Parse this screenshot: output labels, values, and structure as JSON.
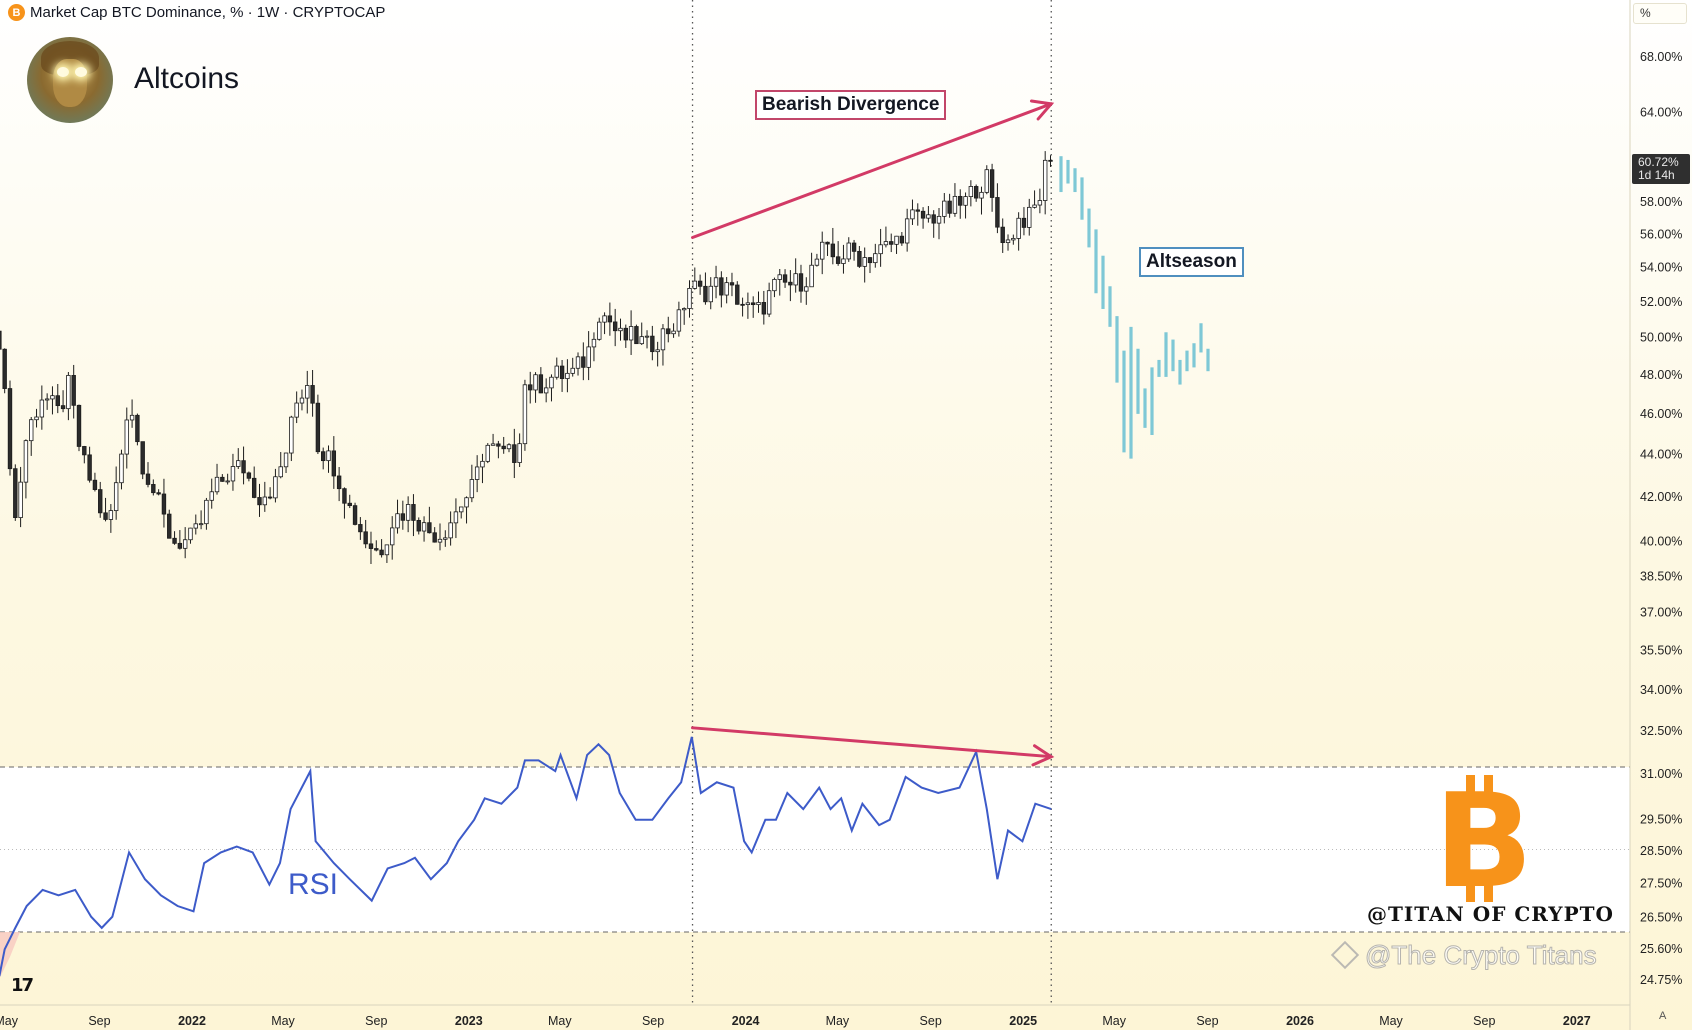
{
  "header": {
    "symbol_icon": "bitcoin-icon",
    "title": "Market Cap BTC Dominance, % · 1W · CRYPTOCAP",
    "channel_name": "Altcoins"
  },
  "scale_mode_label": "%",
  "last_price_tag": {
    "value": "60.72%",
    "countdown": "1d 14h"
  },
  "annotations": {
    "bearish_divergence": "Bearish Divergence",
    "altseason": "Altseason",
    "rsi_label": "RSI",
    "author_tag": "@TITAN OF CRYPTO",
    "watermark": "@The Crypto Titans",
    "axis_corner": "A"
  },
  "colors": {
    "up_body": "#ffffff",
    "down_body": "#2b2b2b",
    "candle_outline": "#1c1c1c",
    "projection": "#7ec8d6",
    "divergence_arrow": "#d23a66",
    "rsi_line": "#3d5bc9",
    "bitcoin_orange": "#f7931a",
    "price_tag_bg": "#2f2f2f"
  },
  "chart_data": [
    {
      "type": "candlestick",
      "interval": "1W",
      "y_scale": "log",
      "y_unit": "%",
      "grid": false,
      "y_ticks": [
        "68.00%",
        "64.00%",
        "58.00%",
        "56.00%",
        "54.00%",
        "52.00%",
        "50.00%",
        "48.00%",
        "46.00%",
        "44.00%",
        "42.00%",
        "40.00%",
        "38.50%",
        "37.00%",
        "35.50%",
        "34.00%",
        "32.50%",
        "31.00%",
        "29.50%",
        "28.50%",
        "27.50%",
        "26.50%",
        "25.60%",
        "24.75%"
      ],
      "y_tick_values": [
        68,
        64,
        58,
        56,
        54,
        52,
        50,
        48,
        46,
        44,
        42,
        40,
        38.5,
        37,
        35.5,
        34,
        32.5,
        31,
        29.5,
        28.5,
        27.5,
        26.5,
        25.6,
        24.75
      ],
      "x_ticks": [
        {
          "label": "May",
          "date": "2021-05-01",
          "bold": false
        },
        {
          "label": "Sep",
          "date": "2021-09-01",
          "bold": false
        },
        {
          "label": "2022",
          "date": "2022-01-01",
          "bold": true
        },
        {
          "label": "May",
          "date": "2022-05-01",
          "bold": false
        },
        {
          "label": "Sep",
          "date": "2022-09-01",
          "bold": false
        },
        {
          "label": "2023",
          "date": "2023-01-01",
          "bold": true
        },
        {
          "label": "May",
          "date": "2023-05-01",
          "bold": false
        },
        {
          "label": "Sep",
          "date": "2023-09-01",
          "bold": false
        },
        {
          "label": "2024",
          "date": "2024-01-01",
          "bold": true
        },
        {
          "label": "May",
          "date": "2024-05-01",
          "bold": false
        },
        {
          "label": "Sep",
          "date": "2024-09-01",
          "bold": false
        },
        {
          "label": "2025",
          "date": "2025-01-01",
          "bold": true
        },
        {
          "label": "May",
          "date": "2025-05-01",
          "bold": false
        },
        {
          "label": "Sep",
          "date": "2025-09-01",
          "bold": false
        },
        {
          "label": "2026",
          "date": "2026-01-01",
          "bold": true
        },
        {
          "label": "May",
          "date": "2026-05-01",
          "bold": false
        },
        {
          "label": "Sep",
          "date": "2026-09-01",
          "bold": false
        },
        {
          "label": "2027",
          "date": "2027-01-01",
          "bold": true
        }
      ],
      "close_points": [
        [
          "2021-04-22",
          50
        ],
        [
          "2021-05-13",
          41
        ],
        [
          "2021-05-28",
          45
        ],
        [
          "2021-06-18",
          47
        ],
        [
          "2021-07-09",
          46
        ],
        [
          "2021-07-23",
          47.5
        ],
        [
          "2021-08-07",
          44
        ],
        [
          "2021-08-28",
          42
        ],
        [
          "2021-09-11",
          40.5
        ],
        [
          "2021-09-26",
          43
        ],
        [
          "2021-10-10",
          47
        ],
        [
          "2021-10-24",
          44
        ],
        [
          "2021-11-14",
          42
        ],
        [
          "2021-12-06",
          40
        ],
        [
          "2021-12-27",
          40
        ],
        [
          "2022-01-10",
          40.5
        ],
        [
          "2022-01-24",
          42
        ],
        [
          "2022-02-15",
          43
        ],
        [
          "2022-03-08",
          43.5
        ],
        [
          "2022-03-29",
          42
        ],
        [
          "2022-04-20",
          42.5
        ],
        [
          "2022-05-04",
          44
        ],
        [
          "2022-05-18",
          46.5
        ],
        [
          "2022-06-06",
          48
        ],
        [
          "2022-06-16",
          44.5
        ],
        [
          "2022-07-07",
          43.5
        ],
        [
          "2022-07-28",
          41.5
        ],
        [
          "2022-08-19",
          40
        ],
        [
          "2022-09-05",
          39.5
        ],
        [
          "2022-09-23",
          41
        ],
        [
          "2022-10-15",
          41.5
        ],
        [
          "2022-11-05",
          40.5
        ],
        [
          "2022-11-26",
          40.3
        ],
        [
          "2022-12-18",
          41.5
        ],
        [
          "2023-01-08",
          42.5
        ],
        [
          "2023-01-22",
          44.5
        ],
        [
          "2023-02-13",
          44
        ],
        [
          "2023-03-06",
          44
        ],
        [
          "2023-03-16",
          47.5
        ],
        [
          "2023-04-03",
          47.5
        ],
        [
          "2023-04-25",
          48
        ],
        [
          "2023-05-16",
          48
        ],
        [
          "2023-06-06",
          49
        ],
        [
          "2023-06-21",
          51.5
        ],
        [
          "2023-07-05",
          51
        ],
        [
          "2023-07-19",
          50
        ],
        [
          "2023-08-09",
          50
        ],
        [
          "2023-08-24",
          49.5
        ],
        [
          "2023-09-14",
          50.2
        ],
        [
          "2023-10-05",
          51
        ],
        [
          "2023-10-20",
          53
        ],
        [
          "2023-11-03",
          52.5
        ],
        [
          "2023-11-24",
          53
        ],
        [
          "2023-12-16",
          52.5
        ],
        [
          "2024-01-06",
          51.5
        ],
        [
          "2024-01-20",
          51.5
        ],
        [
          "2024-02-10",
          53
        ],
        [
          "2024-03-03",
          53
        ],
        [
          "2024-03-24",
          53.5
        ],
        [
          "2024-04-10",
          55
        ],
        [
          "2024-04-29",
          54.5
        ],
        [
          "2024-05-20",
          55
        ],
        [
          "2024-06-03",
          54.5
        ],
        [
          "2024-06-25",
          55
        ],
        [
          "2024-07-16",
          55.5
        ],
        [
          "2024-08-06",
          57
        ],
        [
          "2024-08-28",
          57
        ],
        [
          "2024-09-25",
          57.5
        ],
        [
          "2024-10-16",
          58
        ],
        [
          "2024-10-31",
          59
        ],
        [
          "2024-11-14",
          59.5
        ],
        [
          "2024-11-28",
          56.5
        ],
        [
          "2024-12-12",
          55.5
        ],
        [
          "2024-12-27",
          57
        ],
        [
          "2025-01-10",
          57
        ],
        [
          "2025-01-24",
          58.5
        ],
        [
          "2025-02-03",
          61.5
        ],
        [
          "2025-02-11",
          60.72
        ]
      ],
      "last_value": 60.72,
      "projection_bars_high_low": [
        [
          61.0,
          58.65
        ],
        [
          60.75,
          59.2
        ],
        [
          60.2,
          58.65
        ],
        [
          59.6,
          56.9
        ],
        [
          57.6,
          55.2
        ],
        [
          56.3,
          52.5
        ],
        [
          54.7,
          51.6
        ],
        [
          52.9,
          50.6
        ],
        [
          51.2,
          47.6
        ],
        [
          49.3,
          44.1
        ],
        [
          50.6,
          43.8
        ],
        [
          49.4,
          46.0
        ],
        [
          47.3,
          45.3
        ],
        [
          48.4,
          44.95
        ],
        [
          48.8,
          47.9
        ],
        [
          50.3,
          47.9
        ],
        [
          49.9,
          48.2
        ],
        [
          48.8,
          47.5
        ],
        [
          49.3,
          48.2
        ],
        [
          49.7,
          48.4
        ],
        [
          50.8,
          49.2
        ],
        [
          49.4,
          48.2
        ]
      ],
      "vertical_markers": [
        "2023-10-23",
        "2025-02-07"
      ],
      "price_divergence_arrow": {
        "from": [
          "2023-10-23",
          55.8
        ],
        "to": [
          "2025-02-07",
          64.6
        ]
      }
    },
    {
      "type": "line",
      "name": "RSI",
      "bands": [
        30,
        50,
        70
      ],
      "points": [
        [
          "2021-04-22",
          19.3
        ],
        [
          "2021-04-29",
          25.8
        ],
        [
          "2021-05-13",
          31.0
        ],
        [
          "2021-05-28",
          36.3
        ],
        [
          "2021-06-18",
          40.2
        ],
        [
          "2021-07-09",
          38.9
        ],
        [
          "2021-07-31",
          40.2
        ],
        [
          "2021-08-21",
          33.7
        ],
        [
          "2021-09-04",
          31.0
        ],
        [
          "2021-09-18",
          33.7
        ],
        [
          "2021-10-10",
          49.3
        ],
        [
          "2021-10-31",
          42.8
        ],
        [
          "2021-11-21",
          38.9
        ],
        [
          "2021-12-13",
          36.3
        ],
        [
          "2022-01-03",
          35.0
        ],
        [
          "2022-01-17",
          46.7
        ],
        [
          "2022-02-08",
          49.3
        ],
        [
          "2022-03-01",
          50.7
        ],
        [
          "2022-03-22",
          49.3
        ],
        [
          "2022-04-13",
          41.5
        ],
        [
          "2022-04-27",
          46.7
        ],
        [
          "2022-05-11",
          59.8
        ],
        [
          "2022-06-06",
          69.0
        ],
        [
          "2022-06-13",
          52.0
        ],
        [
          "2022-07-07",
          46.7
        ],
        [
          "2022-07-28",
          42.8
        ],
        [
          "2022-08-26",
          37.6
        ],
        [
          "2022-09-16",
          45.4
        ],
        [
          "2022-10-08",
          46.7
        ],
        [
          "2022-10-22",
          48.0
        ],
        [
          "2022-11-12",
          42.8
        ],
        [
          "2022-12-03",
          46.7
        ],
        [
          "2022-12-18",
          52.0
        ],
        [
          "2023-01-08",
          57.2
        ],
        [
          "2023-01-22",
          62.4
        ],
        [
          "2023-02-13",
          61.1
        ],
        [
          "2023-03-06",
          65.0
        ],
        [
          "2023-03-16",
          71.6
        ],
        [
          "2023-04-03",
          71.6
        ],
        [
          "2023-04-25",
          69.0
        ],
        [
          "2023-05-02",
          72.9
        ],
        [
          "2023-05-23",
          62.4
        ],
        [
          "2023-06-06",
          72.9
        ],
        [
          "2023-06-21",
          75.5
        ],
        [
          "2023-07-05",
          72.9
        ],
        [
          "2023-07-19",
          63.7
        ],
        [
          "2023-08-09",
          57.2
        ],
        [
          "2023-08-31",
          57.2
        ],
        [
          "2023-09-21",
          62.4
        ],
        [
          "2023-10-08",
          66.3
        ],
        [
          "2023-10-22",
          77.3
        ],
        [
          "2023-11-03",
          63.7
        ],
        [
          "2023-11-24",
          66.3
        ],
        [
          "2023-12-16",
          65.0
        ],
        [
          "2023-12-30",
          52.0
        ],
        [
          "2024-01-09",
          49.3
        ],
        [
          "2024-01-27",
          57.2
        ],
        [
          "2024-02-10",
          57.2
        ],
        [
          "2024-02-25",
          63.7
        ],
        [
          "2024-03-17",
          59.8
        ],
        [
          "2024-04-07",
          65.0
        ],
        [
          "2024-04-22",
          59.8
        ],
        [
          "2024-05-06",
          62.4
        ],
        [
          "2024-05-20",
          54.6
        ],
        [
          "2024-06-03",
          61.1
        ],
        [
          "2024-06-25",
          55.9
        ],
        [
          "2024-07-09",
          57.2
        ],
        [
          "2024-07-30",
          67.6
        ],
        [
          "2024-08-20",
          65.0
        ],
        [
          "2024-09-11",
          63.7
        ],
        [
          "2024-10-09",
          65.0
        ],
        [
          "2024-10-31",
          73.7
        ],
        [
          "2024-11-14",
          59.8
        ],
        [
          "2024-11-28",
          42.8
        ],
        [
          "2024-12-12",
          54.6
        ],
        [
          "2024-12-31",
          52.0
        ],
        [
          "2025-01-17",
          61.1
        ],
        [
          "2025-02-07",
          59.8
        ]
      ],
      "divergence_arrow": {
        "from": [
          "2023-10-23",
          79.5
        ],
        "to": [
          "2025-02-07",
          72.5
        ]
      }
    }
  ]
}
